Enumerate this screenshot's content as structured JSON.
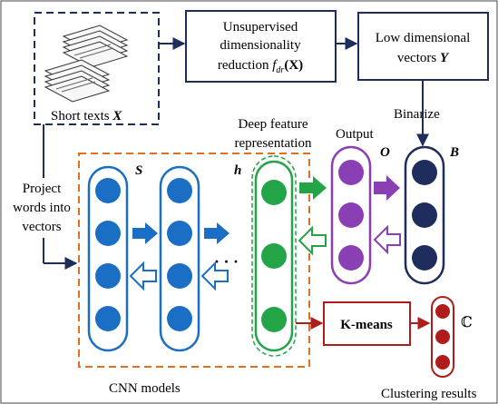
{
  "boxes": {
    "short_texts": {
      "label": "Short texts",
      "symbol": "X"
    },
    "reduction": {
      "line1": "Unsupervised",
      "line2": "dimensionality",
      "line3": "reduction",
      "func": "f",
      "func_sub": "dr",
      "func_arg": "(X)"
    },
    "low_dim": {
      "line1": "Low dimensional",
      "line2": "vectors",
      "symbol": "Y"
    },
    "kmeans": {
      "label": "K-means"
    }
  },
  "labels": {
    "binarize": "Binarize",
    "deep_feature_1": "Deep feature",
    "deep_feature_2": "representation",
    "output": "Output",
    "output_symbol": "O",
    "b_symbol": "B",
    "s_symbol": "S",
    "h_symbol": "h",
    "project_1": "Project",
    "project_2": "words into",
    "project_3": "vectors",
    "cnn_models": "CNN models",
    "clustering_results": "Clustering results",
    "c_symbol": "ℂ",
    "ellipsis": "· · ·"
  },
  "colors": {
    "navy": "#1f2d5c",
    "blue": "#1a6fc4",
    "green": "#22a447",
    "purple": "#8a3fb5",
    "red": "#b01c1c",
    "orange": "#e07020"
  }
}
